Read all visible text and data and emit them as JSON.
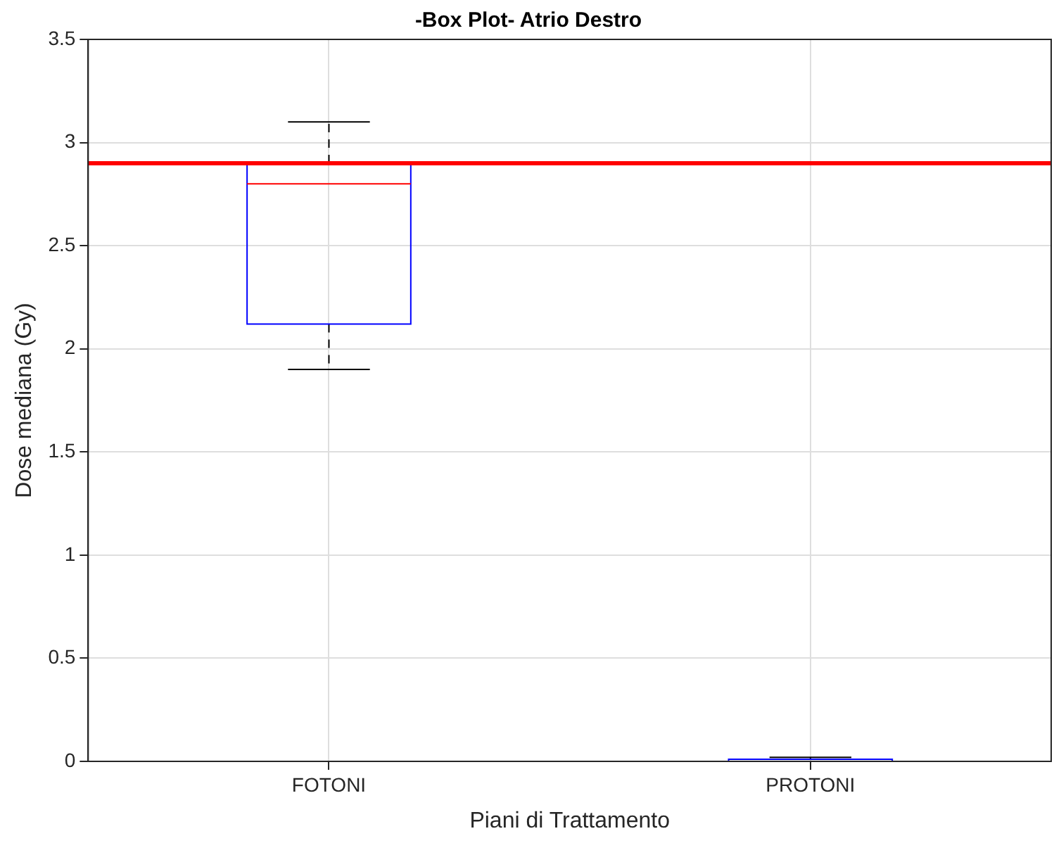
{
  "chart_data": {
    "type": "box",
    "title": "-Box Plot- Atrio Destro",
    "xlabel": "Piani di Trattamento",
    "ylabel": "Dose mediana (Gy)",
    "categories": [
      "FOTONI",
      "PROTONI"
    ],
    "series": [
      {
        "color": "#0000ff",
        "boxes": [
          {
            "low": 1.9,
            "q1": 2.12,
            "median": 2.8,
            "q3": 2.9,
            "high": 3.1
          },
          {
            "low": 0,
            "q1": 0,
            "median": 0,
            "q3": 0.01,
            "high": 0.02
          }
        ]
      }
    ],
    "ylim": [
      0,
      3.5
    ],
    "yticks": [
      0,
      0.5,
      1,
      1.5,
      2,
      2.5,
      3,
      3.5
    ],
    "grid": true,
    "ref_lines": [
      {
        "axis": "y",
        "value": 2.9,
        "color": "#ff0000"
      }
    ]
  }
}
